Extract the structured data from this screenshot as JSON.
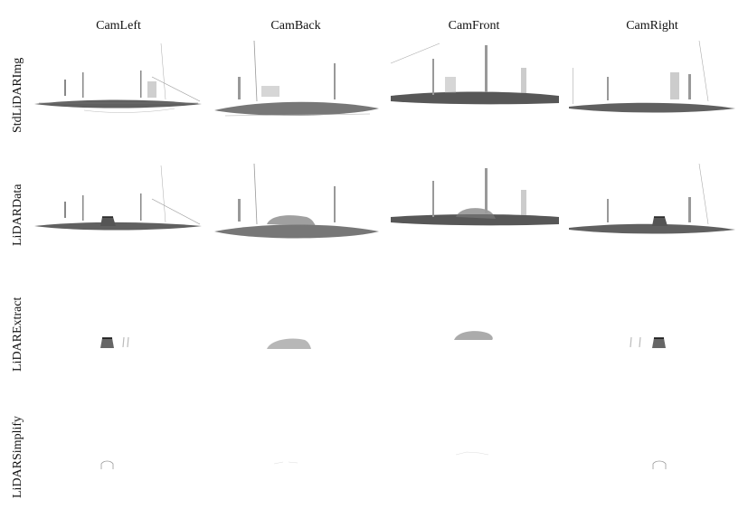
{
  "columns": [
    "CamLeft",
    "CamBack",
    "CamFront",
    "CamRight"
  ],
  "rows": [
    "StdLiDARImg",
    "LiDARData",
    "LiDARExtract",
    "LiDARSimplify"
  ],
  "colors": {
    "background": "#ffffff",
    "points_dark": "#222222",
    "points_light": "#9a9a9a"
  }
}
